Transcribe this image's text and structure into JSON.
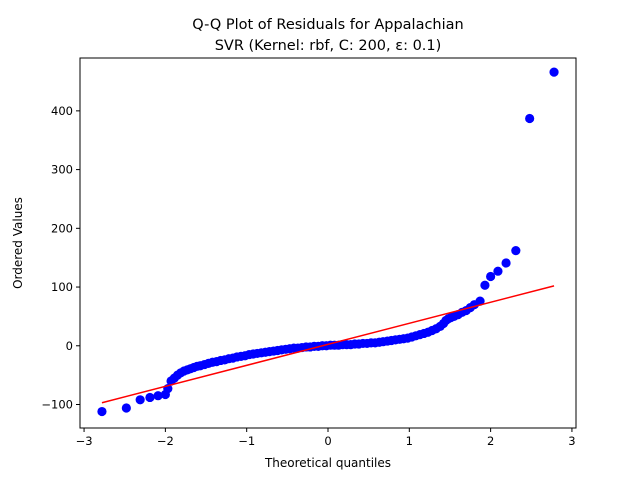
{
  "chart_data": {
    "type": "scatter",
    "title": "Q-Q Plot of Residuals for Appalachian",
    "subtitle": "SVR (Kernel: rbf, C: 200, ε: 0.1)",
    "xlabel": "Theoretical quantiles",
    "ylabel": "Ordered Values",
    "xlim": [
      -3.05,
      3.05
    ],
    "ylim": [
      -140,
      490
    ],
    "x_ticks": [
      -3,
      -2,
      -1,
      0,
      1,
      2,
      3
    ],
    "x_tick_labels": [
      "−3",
      "−2",
      "−1",
      "0",
      "1",
      "2",
      "3"
    ],
    "y_ticks": [
      -100,
      0,
      100,
      200,
      300,
      400
    ],
    "y_tick_labels": [
      "−100",
      "0",
      "100",
      "200",
      "300",
      "400"
    ],
    "grid": false,
    "series": [
      {
        "kind": "points",
        "color": "#0000ff",
        "x": [
          -2.78,
          -2.48,
          -2.31,
          -2.19,
          -2.09,
          -2.0,
          -1.97,
          -1.93,
          -1.89,
          -1.85,
          -1.81,
          -1.77,
          -1.73,
          -1.69,
          -1.65,
          -1.61,
          -1.57,
          -1.52,
          -1.47,
          -1.42,
          -1.37,
          -1.32,
          -1.27,
          -1.22,
          -1.17,
          -1.12,
          -1.07,
          -1.02,
          -0.97,
          -0.92,
          -0.87,
          -0.82,
          -0.77,
          -0.72,
          -0.67,
          -0.62,
          -0.57,
          -0.52,
          -0.47,
          -0.42,
          -0.37,
          -0.32,
          -0.27,
          -0.22,
          -0.17,
          -0.12,
          -0.07,
          -0.02,
          0.03,
          0.08,
          0.13,
          0.18,
          0.23,
          0.28,
          0.33,
          0.38,
          0.43,
          0.48,
          0.53,
          0.58,
          0.63,
          0.68,
          0.73,
          0.78,
          0.83,
          0.88,
          0.93,
          0.98,
          1.03,
          1.08,
          1.13,
          1.18,
          1.23,
          1.28,
          1.33,
          1.38,
          1.42,
          1.45,
          1.48,
          1.51,
          1.55,
          1.6,
          1.65,
          1.7,
          1.75,
          1.8,
          1.87,
          1.93,
          2.0,
          2.09,
          2.19,
          2.31,
          2.48,
          2.78
        ],
        "y": [
          -112,
          -106,
          -92,
          -88,
          -85,
          -83,
          -73,
          -60,
          -55,
          -50,
          -46,
          -43,
          -41,
          -39,
          -37,
          -35,
          -34,
          -32,
          -30,
          -28,
          -27,
          -25,
          -24,
          -22,
          -21,
          -19,
          -18,
          -17,
          -15,
          -14,
          -13,
          -12,
          -11,
          -10,
          -9,
          -8,
          -7,
          -6,
          -5,
          -4,
          -4,
          -3,
          -2,
          -2,
          -1,
          -1,
          0,
          0,
          1,
          1,
          1,
          2,
          2,
          2,
          3,
          3,
          4,
          4,
          5,
          5,
          6,
          7,
          8,
          9,
          10,
          11,
          12,
          13,
          15,
          17,
          19,
          21,
          23,
          26,
          29,
          33,
          38,
          43,
          46,
          48,
          50,
          53,
          57,
          60,
          65,
          70,
          76,
          103,
          118,
          127,
          141,
          162,
          387,
          466
        ]
      },
      {
        "kind": "line",
        "color": "#ff0000",
        "x": [
          -2.78,
          2.78
        ],
        "y": [
          -97,
          102
        ]
      }
    ]
  }
}
